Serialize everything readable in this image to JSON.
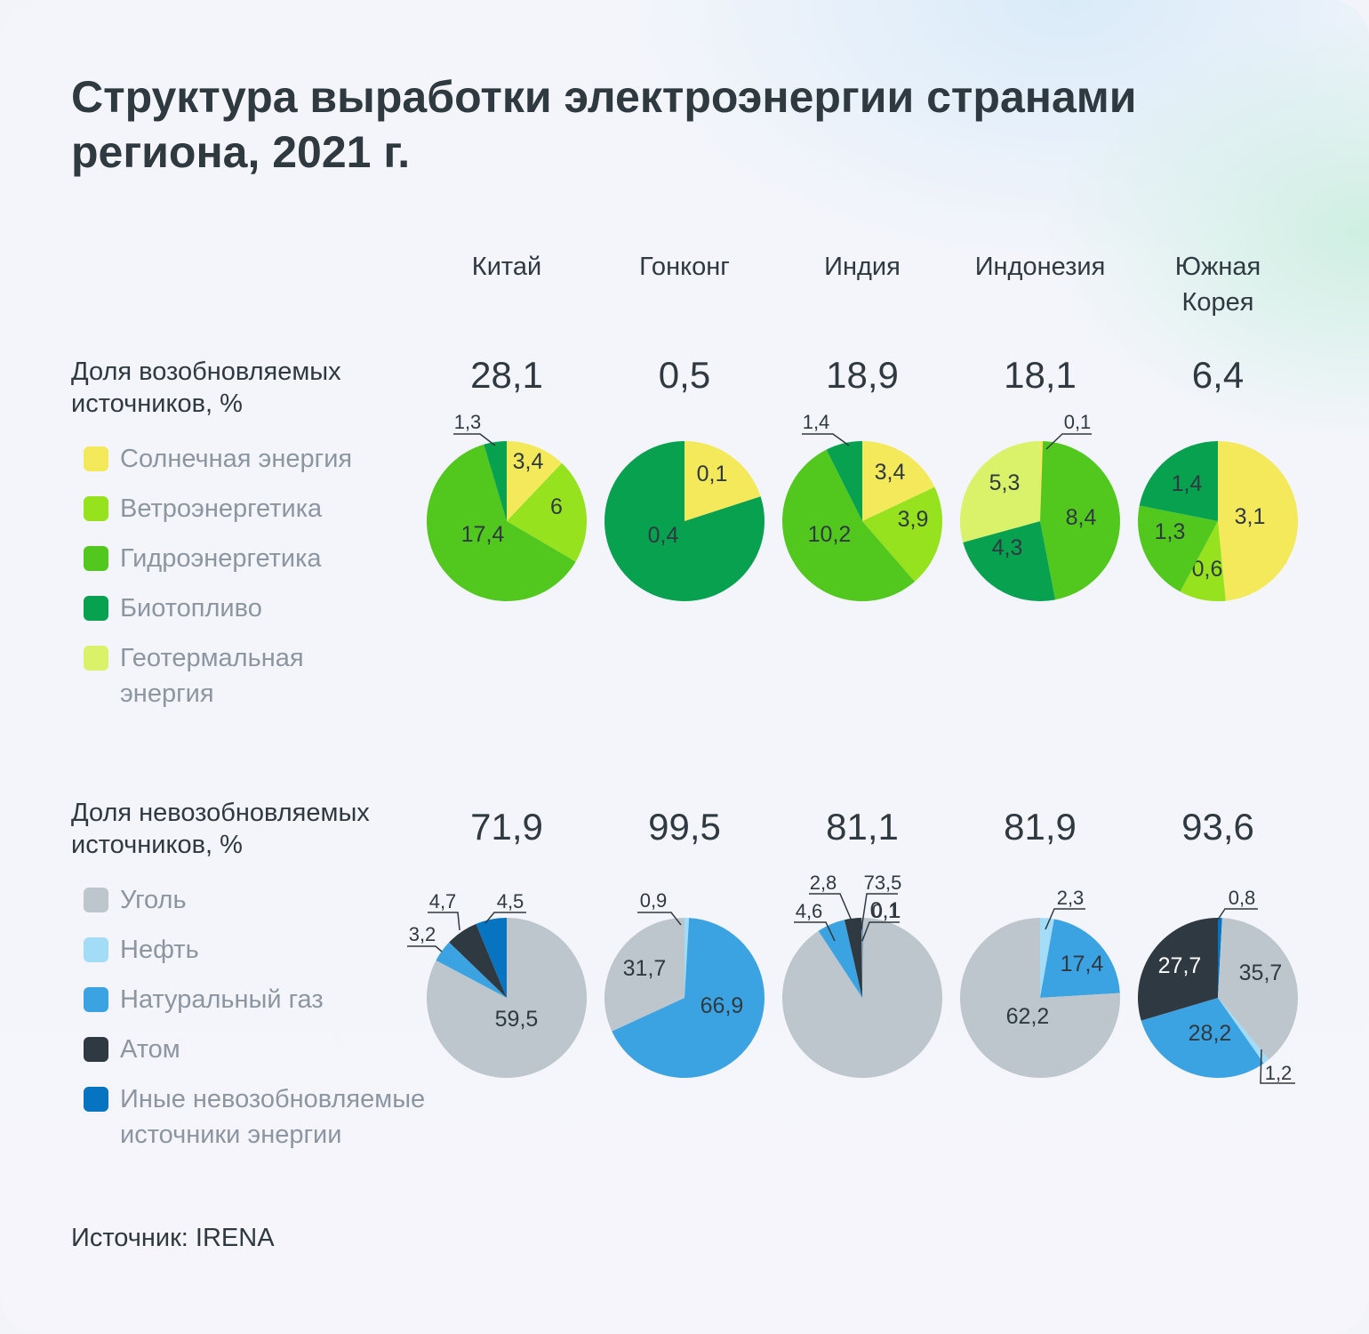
{
  "title": "Структура выработки электроэнергии странами региона, 2021 г.",
  "countries": [
    "Китай",
    "Гонконг",
    "Индия",
    "Индонезия",
    "Южная Корея"
  ],
  "source": "Источник: IRENA",
  "renewable": {
    "label": "Доля возобновляемых источников, %",
    "totals": [
      "28,1",
      "0,5",
      "18,9",
      "18,1",
      "6,4"
    ],
    "legend": [
      {
        "label": "Солнечная энергия",
        "color": "#f4e95a"
      },
      {
        "label": "Ветроэнергетика",
        "color": "#96e21e"
      },
      {
        "label": "Гидроэнергетика",
        "color": "#52c81e"
      },
      {
        "label": "Биотопливо",
        "color": "#07a150"
      },
      {
        "label": "Геотермальная энергия",
        "color": "#d9f26a"
      }
    ]
  },
  "nonrenewable": {
    "label": "Доля невозобновляемых источников, %",
    "totals": [
      "71,9",
      "99,5",
      "81,1",
      "81,9",
      "93,6"
    ],
    "legend": [
      {
        "label": "Уголь",
        "color": "#bcc6cc"
      },
      {
        "label": "Нефть",
        "color": "#a2dcf7"
      },
      {
        "label": "Натуральный газ",
        "color": "#3ca3e3"
      },
      {
        "label": "Атом",
        "color": "#2e3942"
      },
      {
        "label": "Иные невозобновляемые источники энергии",
        "color": "#0674c0"
      }
    ]
  },
  "chart_data": [
    {
      "type": "pie",
      "group": "renewable",
      "categories": [
        "Солнечная энергия",
        "Ветроэнергетика",
        "Гидроэнергетика",
        "Биотопливо",
        "Геотермальная энергия"
      ],
      "series": [
        {
          "name": "Китай",
          "values": [
            3.4,
            6,
            17.4,
            1.3,
            0
          ],
          "labels": [
            "3,4",
            "6",
            "17,4",
            "1,3",
            ""
          ]
        },
        {
          "name": "Гонконг",
          "values": [
            0.1,
            0,
            0,
            0.4,
            0
          ],
          "labels": [
            "0,1",
            "",
            "",
            "0,4",
            ""
          ]
        },
        {
          "name": "Индия",
          "values": [
            3.4,
            3.9,
            10.2,
            1.4,
            0
          ],
          "labels": [
            "3,4",
            "3,9",
            "10,2",
            "1,4",
            ""
          ]
        },
        {
          "name": "Индонезия",
          "values": [
            0.1,
            0,
            8.4,
            4.3,
            5.3
          ],
          "labels": [
            "0,1",
            "",
            "8,4",
            "4,3",
            "5,3"
          ]
        },
        {
          "name": "Южная Корея",
          "values": [
            3.1,
            0.6,
            1.3,
            1.4,
            0
          ],
          "labels": [
            "3,1",
            "0,6",
            "1,3",
            "1,4",
            ""
          ]
        }
      ]
    },
    {
      "type": "pie",
      "group": "nonrenewable",
      "categories": [
        "Уголь",
        "Нефть",
        "Натуральный газ",
        "Атом",
        "Иные невозобновляемые источники энергии"
      ],
      "series": [
        {
          "name": "Китай",
          "values": [
            59.5,
            0,
            3.2,
            4.7,
            4.5
          ],
          "labels": [
            "59,5",
            "",
            "3,2",
            "4,7",
            "4,5"
          ]
        },
        {
          "name": "Гонконг",
          "values": [
            31.7,
            0.9,
            66.9,
            0,
            0
          ],
          "labels": [
            "31,7",
            "0,9",
            "66,9",
            "",
            ""
          ]
        },
        {
          "name": "Индия",
          "values": [
            73.5,
            0.1,
            4.6,
            2.8,
            0.1
          ],
          "labels": [
            "73,5",
            "0,1",
            "4,6",
            "2,8",
            "0,1"
          ]
        },
        {
          "name": "Индонезия",
          "values": [
            62.2,
            2.3,
            17.4,
            0,
            0
          ],
          "labels": [
            "62,2",
            "2,3",
            "17,4",
            "",
            ""
          ]
        },
        {
          "name": "Южная Корея",
          "values": [
            35.7,
            1.2,
            28.2,
            27.7,
            0.8
          ],
          "labels": [
            "35,7",
            "1,2",
            "28,2",
            "27,7",
            "0,8"
          ]
        }
      ]
    }
  ]
}
